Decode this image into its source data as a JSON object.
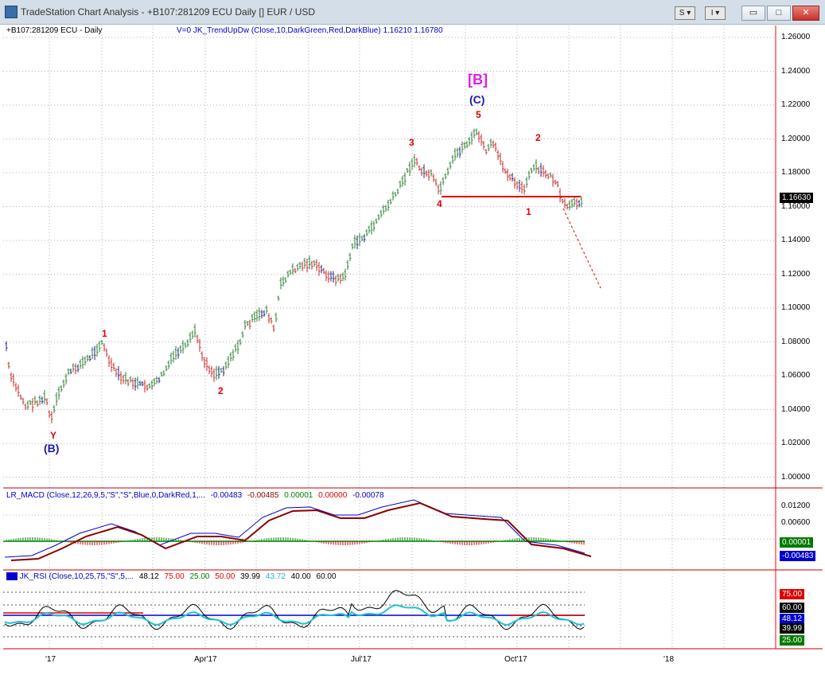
{
  "window": {
    "title": "TradeStation Chart Analysis - +B107:281209 ECU Daily [] EUR / USD",
    "buttons": {
      "s_btn": "S",
      "i_btn": "I",
      "minimize": "▭",
      "maximize": "□",
      "close": "✕"
    }
  },
  "main_chart": {
    "symbol_label": "+B107:281209 ECU - Daily",
    "indicator_label": "V=0  JK_TrendUpDw (Close,10,DarkGreen,Red,DarkBlue)  1.16210  1.16780",
    "y_ticks": [
      "1.26000",
      "1.24000",
      "1.22000",
      "1.20000",
      "1.18000",
      "1.16000",
      "1.14000",
      "1.12000",
      "1.10000",
      "1.08000",
      "1.06000",
      "1.04000",
      "1.02000",
      "1.00000"
    ],
    "last_price": "1.16630",
    "wave_labels": {
      "B_bracket": "[B]",
      "C_paren": "(C)",
      "w5": "5",
      "w3": "3",
      "w4": "4",
      "w2_right": "2",
      "w1_right": "1",
      "w1_left": "1",
      "w2_left": "2",
      "Y": "Y",
      "B_paren": "(B)"
    },
    "colors": {
      "up_bar": "#2e7d32",
      "down_bar": "#c62828",
      "neutral_bar": "#1a237e"
    }
  },
  "macd_panel": {
    "label_prefix": "LR_MACD (Close,12,26,9,5,\"S\",\"S\",Blue,0,DarkRed,1,...",
    "v1": "-0.00483",
    "v2": "-0.00485",
    "v3": "0.00001",
    "v4": "0.00000",
    "v5": "-0.00078",
    "y_ticks": [
      "0.01200",
      "0.00600"
    ],
    "box_zero": "0.00001",
    "box_macd": "-0.00483"
  },
  "rsi_panel": {
    "label_prefix": "JK_RSI (Close,10,25,75,\"S\",5,...",
    "v1": "48.12",
    "v2": "75.00",
    "v3": "25.00",
    "v4": "50.00",
    "v5": "39.99",
    "v6": "43.72",
    "v7": "40.00",
    "v8": "60.00",
    "boxes": {
      "b75": "75.00",
      "b60": "60.00",
      "b48": "48.12",
      "b39": "39.99",
      "b25": "25.00"
    }
  },
  "x_axis": {
    "labels": [
      "'17",
      "Apr'17",
      "Jul'17",
      "Oct'17",
      "'18"
    ]
  }
}
